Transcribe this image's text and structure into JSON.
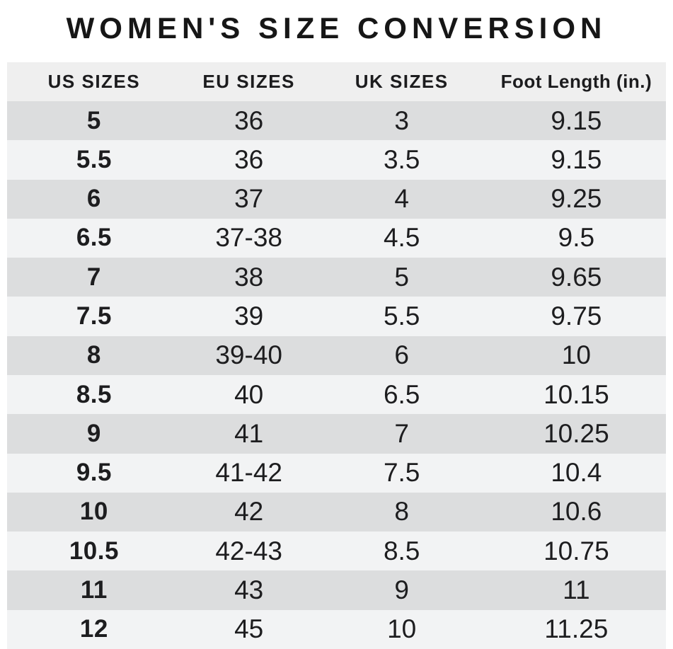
{
  "chart_data": {
    "type": "table",
    "title": "WOMEN'S SIZE CONVERSION",
    "headers": [
      "US SIZES",
      "EU SIZES",
      "UK SIZES",
      "Foot Length (in.)"
    ],
    "rows": [
      [
        "5",
        "36",
        "3",
        "9.15"
      ],
      [
        "5.5",
        "36",
        "3.5",
        "9.15"
      ],
      [
        "6",
        "37",
        "4",
        "9.25"
      ],
      [
        "6.5",
        "37-38",
        "4.5",
        "9.5"
      ],
      [
        "7",
        "38",
        "5",
        "9.65"
      ],
      [
        "7.5",
        "39",
        "5.5",
        "9.75"
      ],
      [
        "8",
        "39-40",
        "6",
        "10"
      ],
      [
        "8.5",
        "40",
        "6.5",
        "10.15"
      ],
      [
        "9",
        "41",
        "7",
        "10.25"
      ],
      [
        "9.5",
        "41-42",
        "7.5",
        "10.4"
      ],
      [
        "10",
        "42",
        "8",
        "10.6"
      ],
      [
        "10.5",
        "42-43",
        "8.5",
        "10.75"
      ],
      [
        "11",
        "43",
        "9",
        "11"
      ],
      [
        "12",
        "45",
        "10",
        "11.25"
      ]
    ],
    "layout": {
      "striped": true,
      "first_data_row_shade": "dark"
    }
  },
  "colors": {
    "page_background": "#ffffff",
    "header_row_background": "#efefef",
    "row_dark": "#dcddde",
    "row_light": "#f2f3f4",
    "text": "#1d1d1f",
    "title_text": "#161616"
  }
}
